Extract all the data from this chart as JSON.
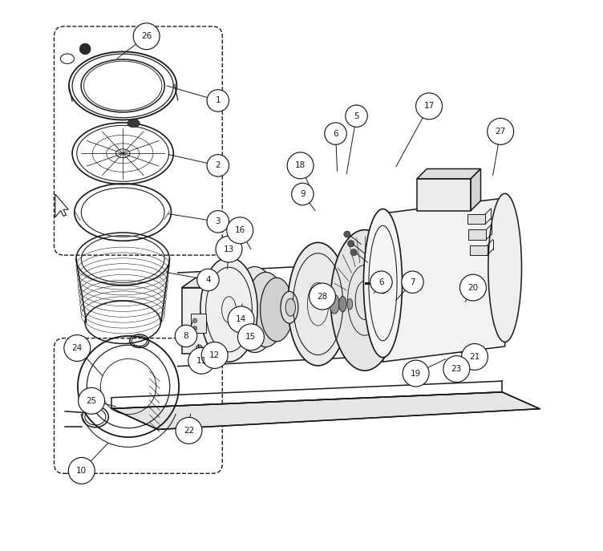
{
  "background_color": "#ffffff",
  "line_color": "#1a1a1a",
  "figsize": [
    7.52,
    6.87
  ],
  "dpi": 100,
  "callouts": [
    [
      26,
      0.218,
      0.935,
      0.165,
      0.895
    ],
    [
      1,
      0.348,
      0.818,
      0.255,
      0.845
    ],
    [
      2,
      0.348,
      0.7,
      0.258,
      0.72
    ],
    [
      3,
      0.348,
      0.598,
      0.258,
      0.612
    ],
    [
      4,
      0.33,
      0.492,
      0.258,
      0.505
    ],
    [
      5,
      0.6,
      0.79,
      0.582,
      0.685
    ],
    [
      6,
      0.562,
      0.758,
      0.565,
      0.69
    ],
    [
      6,
      0.645,
      0.488,
      0.632,
      0.468
    ],
    [
      7,
      0.702,
      0.488,
      0.672,
      0.455
    ],
    [
      8,
      0.29,
      0.39,
      0.302,
      0.415
    ],
    [
      9,
      0.502,
      0.648,
      0.525,
      0.618
    ],
    [
      10,
      0.1,
      0.145,
      0.148,
      0.195
    ],
    [
      11,
      0.318,
      0.345,
      0.312,
      0.375
    ],
    [
      12,
      0.342,
      0.355,
      0.328,
      0.378
    ],
    [
      13,
      0.368,
      0.548,
      0.365,
      0.512
    ],
    [
      14,
      0.39,
      0.42,
      0.392,
      0.448
    ],
    [
      15,
      0.408,
      0.388,
      0.412,
      0.415
    ],
    [
      16,
      0.388,
      0.582,
      0.408,
      0.548
    ],
    [
      17,
      0.732,
      0.808,
      0.672,
      0.698
    ],
    [
      18,
      0.498,
      0.7,
      0.518,
      0.655
    ],
    [
      19,
      0.708,
      0.322,
      0.762,
      0.348
    ],
    [
      20,
      0.812,
      0.478,
      0.798,
      0.452
    ],
    [
      21,
      0.815,
      0.352,
      0.808,
      0.375
    ],
    [
      22,
      0.295,
      0.218,
      0.298,
      0.248
    ],
    [
      23,
      0.782,
      0.33,
      0.775,
      0.352
    ],
    [
      24,
      0.092,
      0.368,
      0.138,
      0.318
    ],
    [
      25,
      0.118,
      0.272,
      0.162,
      0.262
    ],
    [
      27,
      0.862,
      0.762,
      0.848,
      0.682
    ],
    [
      28,
      0.538,
      0.462,
      0.53,
      0.478
    ]
  ]
}
